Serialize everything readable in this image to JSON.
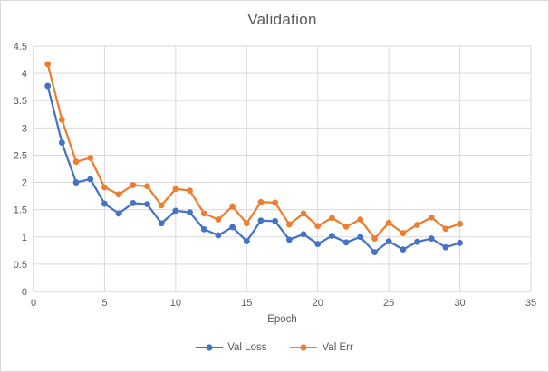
{
  "chart_data": {
    "type": "line",
    "title": "Validation",
    "xlabel": "Epoch",
    "ylabel": "",
    "x": [
      1,
      2,
      3,
      4,
      5,
      6,
      7,
      8,
      9,
      10,
      11,
      12,
      13,
      14,
      15,
      16,
      17,
      18,
      19,
      20,
      21,
      22,
      23,
      24,
      25,
      26,
      27,
      28,
      29,
      30
    ],
    "series": [
      {
        "name": "Val Loss",
        "color": "#4472C4",
        "values": [
          3.77,
          2.73,
          2.0,
          2.06,
          1.61,
          1.43,
          1.62,
          1.6,
          1.25,
          1.48,
          1.45,
          1.14,
          1.03,
          1.18,
          0.92,
          1.3,
          1.29,
          0.95,
          1.05,
          0.87,
          1.02,
          0.9,
          1.0,
          0.72,
          0.92,
          0.77,
          0.91,
          0.97,
          0.81,
          0.89
        ]
      },
      {
        "name": "Val Err",
        "color": "#ED7D31",
        "values": [
          4.17,
          3.15,
          2.38,
          2.45,
          1.91,
          1.78,
          1.95,
          1.93,
          1.58,
          1.88,
          1.85,
          1.43,
          1.32,
          1.56,
          1.25,
          1.64,
          1.63,
          1.23,
          1.43,
          1.2,
          1.35,
          1.19,
          1.32,
          0.97,
          1.26,
          1.07,
          1.22,
          1.36,
          1.15,
          1.24
        ]
      }
    ],
    "xlim": [
      0,
      35
    ],
    "ylim": [
      0,
      4.5
    ],
    "x_ticks": [
      0,
      5,
      10,
      15,
      20,
      25,
      30,
      35
    ],
    "y_ticks": [
      0,
      0.5,
      1,
      1.5,
      2,
      2.5,
      3,
      3.5,
      4,
      4.5
    ],
    "grid": true,
    "legend_position": "bottom"
  },
  "colors": {
    "gridline": "#D9D9D9",
    "axis_line": "#BFBFBF",
    "tick_text": "#595959",
    "title_text": "#595959",
    "frame_border": "#D9D9D9",
    "background": "#FFFFFF"
  }
}
